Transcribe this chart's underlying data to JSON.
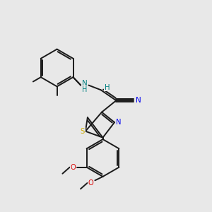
{
  "bg_color": "#e8e8e8",
  "bond_color": "#1a1a1a",
  "bond_width": 1.4,
  "atom_colors": {
    "N_blue": "#0000ee",
    "N_teal": "#008080",
    "S_yellow": "#ccaa00",
    "O_red": "#dd0000",
    "H_teal": "#008080"
  },
  "figsize": [
    3.0,
    3.0
  ],
  "dpi": 100,
  "xlim": [
    0,
    10
  ],
  "ylim": [
    0,
    10
  ]
}
